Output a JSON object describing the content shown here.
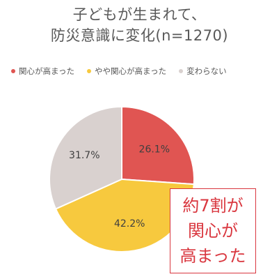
{
  "title": {
    "line1": "子どもが生まれて、",
    "line2": "防災意識に変化(n=1270)"
  },
  "callout": {
    "line1": "約7割が",
    "line2": "関心が",
    "line3": "高まった"
  },
  "chart_data": {
    "type": "pie",
    "title": "子どもが生まれて、防災意識に変化(n=1270)",
    "legend_position": "top",
    "start_angle_deg": 0,
    "direction": "clockwise",
    "slices": [
      {
        "label": "関心が高まった",
        "value": 26.1,
        "value_label": "26.1%",
        "color": "#e05552"
      },
      {
        "label": "やや関心が高まった",
        "value": 42.2,
        "value_label": "42.2%",
        "color": "#f7c93e"
      },
      {
        "label": "変わらない",
        "value": 31.7,
        "value_label": "31.7%",
        "color": "#d9d1cf"
      }
    ]
  }
}
